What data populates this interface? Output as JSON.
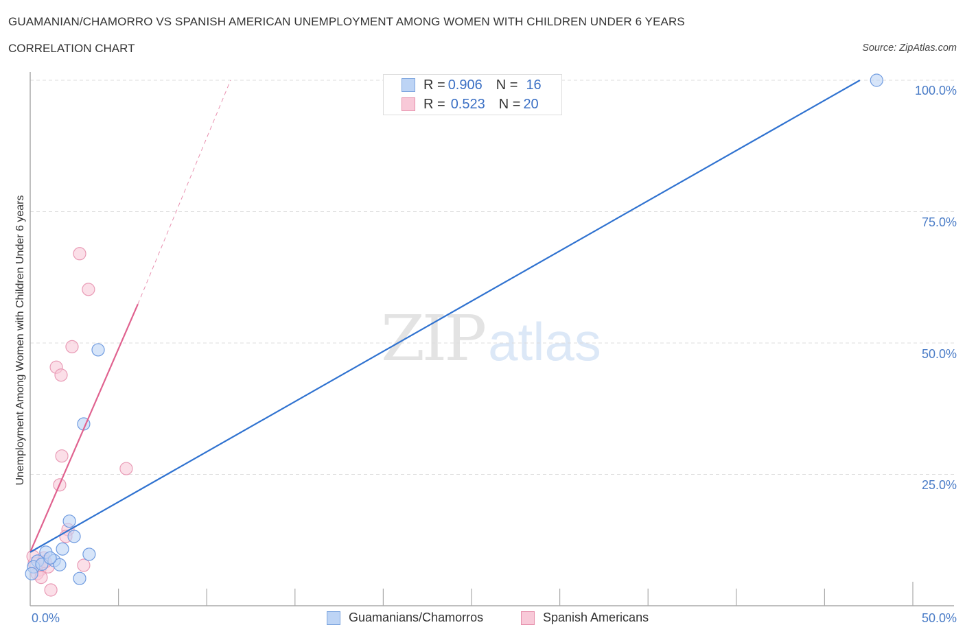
{
  "header": {
    "title": "GUAMANIAN/CHAMORRO VS SPANISH AMERICAN UNEMPLOYMENT AMONG WOMEN WITH CHILDREN UNDER 6 YEARS",
    "subtitle": "CORRELATION CHART",
    "source": "Source: ZipAtlas.com"
  },
  "watermark": {
    "zip": "ZIP",
    "atlas": "atlas"
  },
  "legend_top": {
    "rows": [
      {
        "r_label": "R = ",
        "r_value": "0.906",
        "n_label": "N = ",
        "n_value": "16",
        "color": "#bdd4f5"
      },
      {
        "r_label": "R = ",
        "r_value": "0.523",
        "n_label": "N = ",
        "n_value": "20",
        "color": "#f8c9d8"
      }
    ]
  },
  "legend_bottom": {
    "items": [
      {
        "label": "Guamanians/Chamorros",
        "color": "#bdd4f5"
      },
      {
        "label": "Spanish Americans",
        "color": "#f8c9d8"
      }
    ]
  },
  "axes": {
    "ylabel": "Unemployment Among Women with Children Under 6 years",
    "yticks": [
      "100.0%",
      "75.0%",
      "50.0%",
      "25.0%"
    ],
    "xticks": {
      "min": "0.0%",
      "max": "50.0%"
    }
  },
  "colors": {
    "blue_line": "#2f72d0",
    "pink_line": "#e0628f",
    "blue_fill": "#bdd4f5",
    "blue_stroke": "#6f9be0",
    "pink_fill": "#f8c9d8",
    "pink_stroke": "#e99ab5",
    "tick_label": "#4a7cc7",
    "grid": "#dddddd"
  },
  "chart_data": {
    "type": "scatter",
    "title": "GUAMANIAN/CHAMORRO VS SPANISH AMERICAN UNEMPLOYMENT AMONG WOMEN WITH CHILDREN UNDER 6 YEARS",
    "subtitle": "CORRELATION CHART",
    "xlabel": "",
    "ylabel": "Unemployment Among Women with Children Under 6 years",
    "xlim": [
      0,
      50
    ],
    "ylim": [
      0,
      100
    ],
    "x_tick_labels": [
      "0.0%",
      "50.0%"
    ],
    "y_tick_labels": [
      "25.0%",
      "50.0%",
      "75.0%",
      "100.0%"
    ],
    "grid": true,
    "legend_position": "bottom",
    "series": [
      {
        "name": "Guamanians/Chamorros",
        "R": 0.906,
        "N": 16,
        "points": [
          [
            47.95,
            100.0
          ],
          [
            3.85,
            48.7
          ],
          [
            3.03,
            34.6
          ],
          [
            2.22,
            16.1
          ],
          [
            2.49,
            13.2
          ],
          [
            1.83,
            10.8
          ],
          [
            3.34,
            9.8
          ],
          [
            0.89,
            10.2
          ],
          [
            1.36,
            8.6
          ],
          [
            1.67,
            7.8
          ],
          [
            0.42,
            8.5
          ],
          [
            0.19,
            7.4
          ],
          [
            0.66,
            7.9
          ],
          [
            0.08,
            6.1
          ],
          [
            2.8,
            5.2
          ],
          [
            1.13,
            9.1
          ]
        ],
        "trend": {
          "x0": 0,
          "y0": 10.2,
          "x1": 47.0,
          "y1": 100.0
        }
      },
      {
        "name": "Spanish Americans",
        "R": 0.523,
        "N": 20,
        "points": [
          [
            2.8,
            67.0
          ],
          [
            3.3,
            60.2
          ],
          [
            2.37,
            49.3
          ],
          [
            1.48,
            45.4
          ],
          [
            1.75,
            43.9
          ],
          [
            1.79,
            28.5
          ],
          [
            5.44,
            26.1
          ],
          [
            1.67,
            23.0
          ],
          [
            2.14,
            14.5
          ],
          [
            2.02,
            13.2
          ],
          [
            3.03,
            7.7
          ],
          [
            1.17,
            3.0
          ],
          [
            0.23,
            8.1
          ],
          [
            0.54,
            6.8
          ],
          [
            0.78,
            9.1
          ],
          [
            0.39,
            6.1
          ],
          [
            1.01,
            7.4
          ],
          [
            0.16,
            9.4
          ],
          [
            0.62,
            5.4
          ],
          [
            0.86,
            8.4
          ]
        ],
        "trend": {
          "x0": 0,
          "y0": 10.2,
          "x1": 6.1,
          "y1": 57.4,
          "dashed_to": {
            "x": 11.35,
            "y": 100.0
          }
        }
      }
    ]
  }
}
